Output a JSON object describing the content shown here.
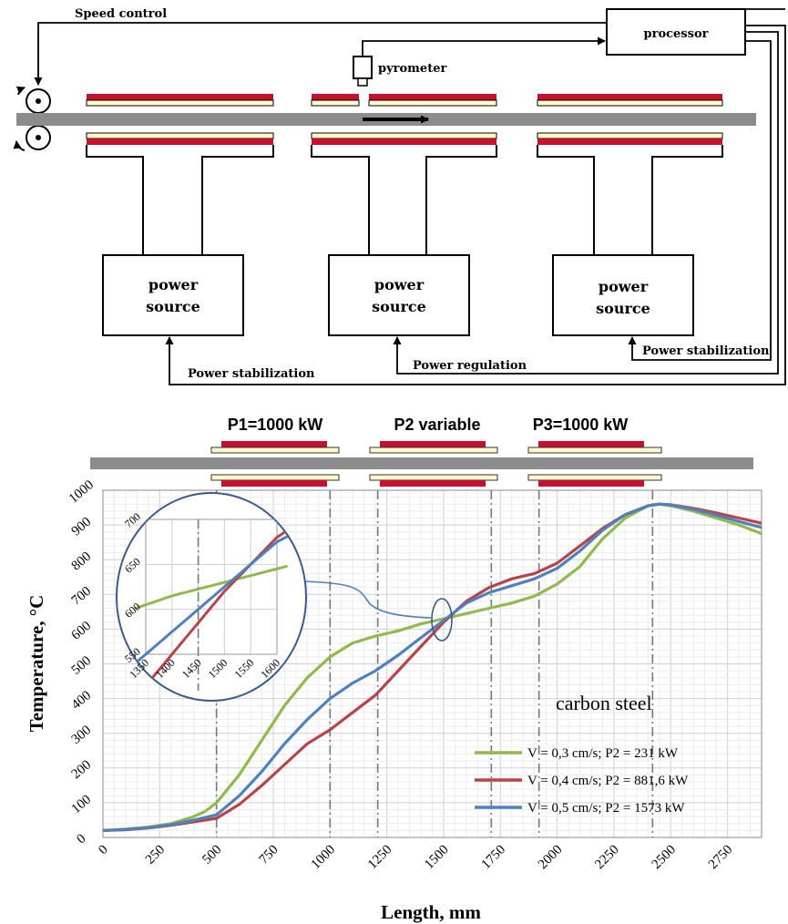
{
  "diagram": {
    "speed_control": "Speed control",
    "processor": "processor",
    "pyrometer": "pyrometer",
    "power_source_line1": "power",
    "power_source_line2": "source",
    "power_stabilization_left": "Power stabilization",
    "power_regulation": "Power regulation",
    "power_stabilization_right": "Power stabilization"
  },
  "zones": {
    "p1": "P1=1000  kW",
    "p2": "P2 variable",
    "p3": "P3=1000 kW"
  },
  "chart_data": {
    "type": "line",
    "xlabel": "Length, mm",
    "ylabel": "Temperature, °C",
    "xlim": [
      0,
      2900
    ],
    "ylim": [
      0,
      1000
    ],
    "xticks": [
      0,
      250,
      500,
      750,
      1000,
      1250,
      1500,
      1750,
      2000,
      2250,
      2500,
      2750
    ],
    "yticks": [
      0,
      100,
      200,
      300,
      400,
      500,
      600,
      700,
      800,
      900,
      1000
    ],
    "zone_lines": [
      500,
      1000,
      1210,
      1710,
      1920,
      2420
    ],
    "annotation": "carbon steel",
    "legend_position": "lower-right",
    "series": [
      {
        "name": "V = 0,3 cm/s; P2 = 231 kW",
        "color": "#92b94e",
        "x": [
          0,
          100,
          200,
          300,
          400,
          450,
          500,
          600,
          700,
          800,
          900,
          1000,
          1100,
          1200,
          1300,
          1400,
          1500,
          1600,
          1700,
          1800,
          1900,
          2000,
          2100,
          2200,
          2300,
          2400,
          2450,
          2500,
          2600,
          2700,
          2800,
          2900
        ],
        "y": [
          20,
          24,
          30,
          40,
          60,
          75,
          100,
          180,
          280,
          380,
          460,
          520,
          560,
          580,
          595,
          615,
          630,
          645,
          660,
          675,
          695,
          730,
          780,
          860,
          920,
          955,
          960,
          955,
          940,
          920,
          900,
          875
        ]
      },
      {
        "name": "V = 0,4 cm/s; P2 = 881,6 kW",
        "color": "#b9434b",
        "x": [
          0,
          100,
          200,
          300,
          400,
          500,
          600,
          700,
          800,
          900,
          1000,
          1100,
          1200,
          1300,
          1400,
          1500,
          1600,
          1700,
          1800,
          1900,
          2000,
          2100,
          2200,
          2300,
          2400,
          2450,
          2500,
          2600,
          2700,
          2800,
          2900
        ],
        "y": [
          20,
          22,
          27,
          35,
          45,
          55,
          95,
          150,
          210,
          270,
          310,
          360,
          410,
          480,
          550,
          620,
          680,
          720,
          745,
          760,
          790,
          840,
          890,
          930,
          955,
          960,
          958,
          948,
          935,
          920,
          905
        ]
      },
      {
        "name": "V = 0,5 cm/s; P2 = 1573 kW",
        "color": "#4f81bd",
        "x": [
          0,
          100,
          200,
          300,
          400,
          500,
          600,
          700,
          800,
          900,
          1000,
          1100,
          1200,
          1300,
          1400,
          1500,
          1600,
          1700,
          1800,
          1900,
          2000,
          2100,
          2200,
          2300,
          2400,
          2450,
          2500,
          2600,
          2700,
          2800,
          2900
        ],
        "y": [
          20,
          23,
          28,
          37,
          50,
          65,
          120,
          190,
          270,
          340,
          400,
          445,
          480,
          525,
          575,
          625,
          675,
          705,
          725,
          745,
          775,
          825,
          885,
          930,
          955,
          960,
          958,
          945,
          928,
          910,
          893
        ]
      }
    ],
    "inset": {
      "xlim": [
        1350,
        1600
      ],
      "ylim": [
        550,
        700
      ],
      "xticks": [
        1350,
        1400,
        1450,
        1500,
        1550,
        1600
      ],
      "yticks": [
        550,
        600,
        650,
        700
      ]
    }
  }
}
